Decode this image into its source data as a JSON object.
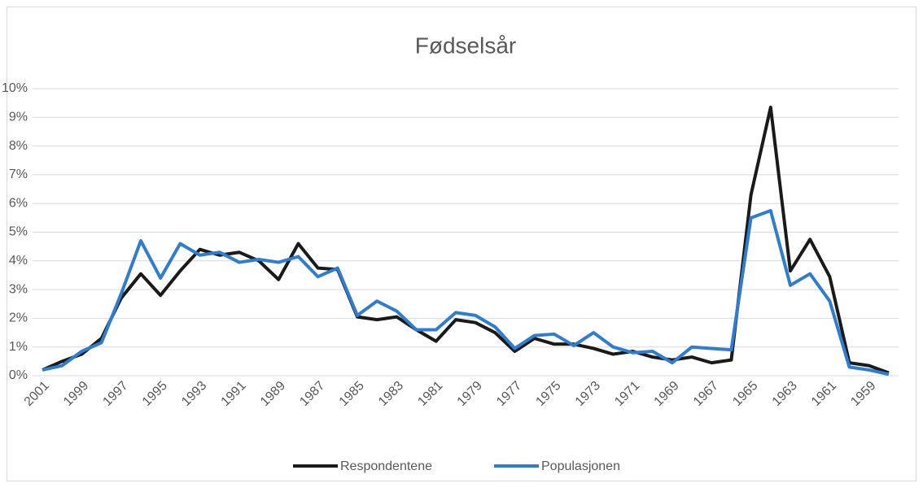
{
  "chart_data": {
    "type": "line",
    "title": "Fødselsår",
    "categories": [
      "2001",
      null,
      "1999",
      null,
      "1997",
      null,
      "1995",
      null,
      "1993",
      null,
      "1991",
      null,
      "1989",
      null,
      "1987",
      null,
      "1985",
      null,
      "1983",
      null,
      "1981",
      null,
      "1979",
      null,
      "1977",
      null,
      "1975",
      null,
      "1973",
      null,
      "1971",
      null,
      "1969",
      null,
      "1967",
      null,
      "1965",
      null,
      "1963",
      null,
      "1961",
      null,
      "1959",
      null
    ],
    "series": [
      {
        "name": "Respondentene",
        "color": "#1a1a1a",
        "values": [
          0.2,
          0.5,
          0.75,
          1.3,
          2.7,
          3.55,
          2.8,
          3.65,
          4.4,
          4.2,
          4.3,
          4.0,
          3.35,
          4.6,
          3.75,
          3.7,
          2.05,
          1.95,
          2.05,
          1.6,
          1.2,
          1.95,
          1.85,
          1.5,
          0.85,
          1.3,
          1.1,
          1.1,
          0.95,
          0.75,
          0.85,
          0.65,
          0.55,
          0.65,
          0.45,
          0.55,
          6.3,
          9.35,
          3.65,
          4.75,
          3.45,
          0.45,
          0.35,
          0.1
        ]
      },
      {
        "name": "Populasjonen",
        "color": "#2e7dd1",
        "values": [
          0.2,
          0.35,
          0.85,
          1.15,
          2.85,
          4.7,
          3.4,
          4.6,
          4.2,
          4.3,
          3.95,
          4.05,
          3.95,
          4.15,
          3.45,
          3.75,
          2.1,
          2.6,
          2.25,
          1.6,
          1.6,
          2.2,
          2.1,
          1.7,
          0.95,
          1.4,
          1.45,
          1.05,
          1.5,
          1.0,
          0.8,
          0.85,
          0.45,
          1.0,
          0.95,
          0.9,
          5.5,
          5.75,
          3.15,
          3.55,
          2.6,
          0.3,
          0.2,
          0.05
        ]
      }
    ],
    "ylim": [
      0,
      10
    ],
    "yticks": [
      {
        "value": 0,
        "label": "0%"
      },
      {
        "value": 1,
        "label": "1%"
      },
      {
        "value": 2,
        "label": "2%"
      },
      {
        "value": 3,
        "label": "3%"
      },
      {
        "value": 4,
        "label": "4%"
      },
      {
        "value": 5,
        "label": "5%"
      },
      {
        "value": 6,
        "label": "6%"
      },
      {
        "value": 7,
        "label": "7%"
      },
      {
        "value": 8,
        "label": "8%"
      },
      {
        "value": 9,
        "label": "9%"
      },
      {
        "value": 10,
        "label": "10%"
      }
    ],
    "grid": true,
    "legend": "bottom"
  }
}
